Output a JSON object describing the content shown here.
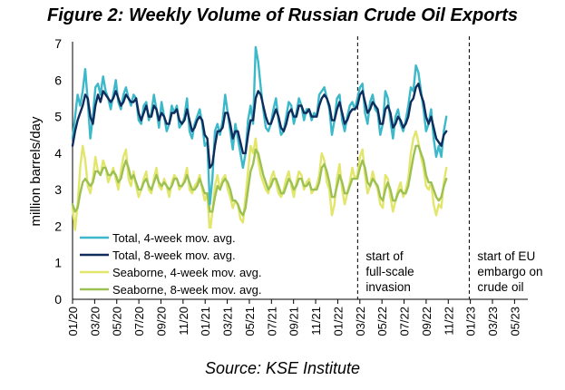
{
  "chart_data": {
    "type": "line",
    "title": "Figure 2: Weekly Volume of Russian Crude Oil Exports",
    "source": "Source: KSE Institute",
    "ylabel": "million barrels/day",
    "xlabel": "",
    "ylim": [
      0,
      7
    ],
    "yticks": [
      "0",
      "1",
      "2",
      "3",
      "4",
      "5",
      "6",
      "7"
    ],
    "xticks": [
      "01/20",
      "03/20",
      "05/20",
      "07/20",
      "09/20",
      "11/20",
      "01/21",
      "03/21",
      "05/21",
      "07/21",
      "09/21",
      "11/21",
      "01/22",
      "03/22",
      "05/22",
      "07/22",
      "09/22",
      "11/22",
      "01/23",
      "03/23",
      "05/23"
    ],
    "x_start": "2020-01",
    "weeks_per_month": 4.345,
    "series": [
      {
        "name": "Total, 4-week mov. avg.",
        "color": "#3BB8C9",
        "values": [
          4.4,
          5.0,
          5.6,
          5.3,
          5.7,
          6.3,
          5.4,
          4.4,
          5.0,
          5.8,
          5.9,
          5.6,
          6.1,
          5.7,
          5.5,
          5.2,
          5.6,
          6.0,
          5.4,
          5.2,
          5.6,
          5.8,
          5.5,
          5.3,
          5.6,
          5.5,
          4.9,
          4.8,
          5.3,
          5.4,
          4.9,
          5.1,
          5.6,
          5.2,
          4.7,
          5.4,
          5.0,
          4.6,
          4.8,
          5.3,
          5.1,
          5.3,
          4.7,
          4.8,
          5.0,
          5.5,
          4.6,
          4.4,
          4.8,
          5.0,
          5.2,
          4.8,
          4.2,
          4.3,
          2.6,
          3.3,
          4.6,
          4.8,
          4.5,
          4.9,
          5.6,
          5.1,
          4.6,
          4.1,
          4.8,
          4.4,
          4.0,
          3.6,
          4.0,
          4.9,
          5.3,
          4.8,
          6.9,
          6.5,
          5.8,
          5.2,
          4.7,
          4.6,
          4.8,
          5.2,
          5.5,
          4.9,
          4.5,
          4.6,
          5.0,
          5.4,
          5.3,
          4.8,
          5.1,
          5.5,
          5.3,
          4.9,
          5.2,
          5.2,
          4.9,
          5.1,
          5.0,
          5.6,
          5.7,
          5.8,
          5.5,
          5.2,
          4.5,
          4.9,
          5.5,
          5.6,
          4.9,
          4.6,
          5.0,
          5.3,
          5.4,
          5.2,
          5.5,
          5.8,
          5.9,
          5.1,
          4.8,
          5.4,
          5.6,
          5.2,
          5.1,
          4.5,
          4.8,
          5.7,
          5.5,
          4.9,
          4.4,
          5.0,
          5.2,
          4.8,
          4.6,
          4.9,
          5.3,
          5.8,
          5.7,
          6.4,
          6.2,
          5.7,
          5.2,
          4.6,
          4.8,
          5.2,
          4.4,
          3.9,
          4.2,
          3.9,
          4.6,
          5.0
        ]
      },
      {
        "name": "Total, 8-week mov. avg.",
        "color": "#0E2C5C",
        "values": [
          4.2,
          4.6,
          4.9,
          5.1,
          5.3,
          5.6,
          5.5,
          5.0,
          4.8,
          5.3,
          5.6,
          5.4,
          5.7,
          5.6,
          5.5,
          5.4,
          5.5,
          5.7,
          5.5,
          5.3,
          5.4,
          5.6,
          5.5,
          5.4,
          5.4,
          5.5,
          5.1,
          4.9,
          5.1,
          5.3,
          5.0,
          5.0,
          5.3,
          5.2,
          4.9,
          5.1,
          5.0,
          4.8,
          4.8,
          5.1,
          5.1,
          5.2,
          4.9,
          4.8,
          4.9,
          5.2,
          4.9,
          4.6,
          4.7,
          4.9,
          5.0,
          4.9,
          4.5,
          4.4,
          3.6,
          3.7,
          4.2,
          4.6,
          4.6,
          4.7,
          5.1,
          5.1,
          4.8,
          4.4,
          4.6,
          4.6,
          4.3,
          4.0,
          4.0,
          4.5,
          4.9,
          4.9,
          5.5,
          5.7,
          5.6,
          5.3,
          5.0,
          4.8,
          4.8,
          5.0,
          5.2,
          5.0,
          4.7,
          4.6,
          4.8,
          5.1,
          5.2,
          5.0,
          5.0,
          5.3,
          5.3,
          5.1,
          5.1,
          5.2,
          5.0,
          5.0,
          5.0,
          5.3,
          5.5,
          5.6,
          5.5,
          5.3,
          4.9,
          4.9,
          5.2,
          5.4,
          5.1,
          4.8,
          4.9,
          5.1,
          5.2,
          5.2,
          5.3,
          5.6,
          5.7,
          5.4,
          5.1,
          5.2,
          5.4,
          5.3,
          5.2,
          4.8,
          4.8,
          5.2,
          5.3,
          5.1,
          4.7,
          4.8,
          5.0,
          4.9,
          4.7,
          4.8,
          5.0,
          5.4,
          5.5,
          5.8,
          5.9,
          5.6,
          5.4,
          5.0,
          4.8,
          5.0,
          4.7,
          4.4,
          4.3,
          4.2,
          4.5,
          4.6
        ]
      },
      {
        "name": "Seaborne, 4-week mov. avg.",
        "color": "#E2E66A",
        "values": [
          2.5,
          1.9,
          2.6,
          3.6,
          4.2,
          3.8,
          3.1,
          2.9,
          3.3,
          3.9,
          3.5,
          3.4,
          3.8,
          3.6,
          3.2,
          3.4,
          3.6,
          3.3,
          3.0,
          3.5,
          3.9,
          4.1,
          3.3,
          3.1,
          3.5,
          3.1,
          2.8,
          3.0,
          3.3,
          3.5,
          3.0,
          2.9,
          3.3,
          3.6,
          3.1,
          3.0,
          3.3,
          3.1,
          2.8,
          3.2,
          3.4,
          3.3,
          3.0,
          3.1,
          3.3,
          3.6,
          3.0,
          2.9,
          3.1,
          3.2,
          3.4,
          3.0,
          2.7,
          2.9,
          1.8,
          2.4,
          3.1,
          3.4,
          3.0,
          3.3,
          3.4,
          3.0,
          2.8,
          2.5,
          2.7,
          2.6,
          2.2,
          2.1,
          2.8,
          3.5,
          4.2,
          4.0,
          4.4,
          3.8,
          3.4,
          3.2,
          3.0,
          2.9,
          3.3,
          3.5,
          3.2,
          2.9,
          2.8,
          3.0,
          3.3,
          3.5,
          3.1,
          2.8,
          3.2,
          3.5,
          3.4,
          3.0,
          3.2,
          3.3,
          2.9,
          3.0,
          3.1,
          3.4,
          4.0,
          3.8,
          3.2,
          3.0,
          2.3,
          2.6,
          3.3,
          3.7,
          3.0,
          2.6,
          2.9,
          3.2,
          3.6,
          3.3,
          3.4,
          3.9,
          4.1,
          3.4,
          2.9,
          3.1,
          3.5,
          3.2,
          3.0,
          2.6,
          2.5,
          3.4,
          3.3,
          2.8,
          2.4,
          2.7,
          3.0,
          3.2,
          2.8,
          3.0,
          3.3,
          4.0,
          4.4,
          4.6,
          4.3,
          3.9,
          3.6,
          3.1,
          3.0,
          3.2,
          2.6,
          2.3,
          2.6,
          2.5,
          3.2,
          3.6
        ]
      },
      {
        "name": "Seaborne, 8-week mov. avg.",
        "color": "#9CC152",
        "values": [
          2.6,
          2.4,
          2.5,
          2.9,
          3.2,
          3.3,
          3.2,
          3.1,
          3.2,
          3.5,
          3.5,
          3.4,
          3.6,
          3.6,
          3.4,
          3.4,
          3.5,
          3.4,
          3.2,
          3.3,
          3.6,
          3.8,
          3.6,
          3.3,
          3.4,
          3.2,
          3.0,
          3.0,
          3.2,
          3.3,
          3.1,
          3.0,
          3.2,
          3.4,
          3.2,
          3.1,
          3.2,
          3.1,
          3.0,
          3.1,
          3.3,
          3.3,
          3.1,
          3.1,
          3.2,
          3.4,
          3.2,
          3.0,
          3.0,
          3.1,
          3.3,
          3.1,
          2.9,
          2.9,
          2.4,
          2.4,
          2.8,
          3.1,
          3.0,
          3.2,
          3.3,
          3.2,
          3.0,
          2.7,
          2.7,
          2.6,
          2.4,
          2.3,
          2.5,
          3.0,
          3.5,
          3.7,
          4.1,
          4.0,
          3.7,
          3.4,
          3.2,
          3.0,
          3.1,
          3.3,
          3.3,
          3.1,
          2.9,
          2.9,
          3.1,
          3.3,
          3.2,
          3.0,
          3.1,
          3.3,
          3.3,
          3.1,
          3.1,
          3.2,
          3.0,
          3.0,
          3.0,
          3.2,
          3.6,
          3.7,
          3.5,
          3.2,
          2.8,
          2.8,
          3.1,
          3.4,
          3.2,
          2.9,
          2.9,
          3.1,
          3.3,
          3.3,
          3.3,
          3.6,
          3.8,
          3.6,
          3.2,
          3.1,
          3.3,
          3.2,
          3.1,
          2.8,
          2.7,
          3.0,
          3.2,
          3.0,
          2.7,
          2.7,
          2.9,
          3.0,
          2.9,
          2.9,
          3.1,
          3.5,
          3.9,
          4.2,
          4.2,
          4.0,
          3.8,
          3.4,
          3.2,
          3.2,
          3.0,
          2.8,
          2.7,
          2.8,
          3.1,
          3.3
        ]
      }
    ],
    "events": [
      {
        "date": "2022-02.8",
        "month_index": 25.8,
        "label_lines": [
          "start of",
          "full-scale",
          "invasion"
        ]
      },
      {
        "date": "2022-12.9",
        "month_index": 35.9,
        "label_lines": [
          "start of EU",
          "embargo on",
          "crude oil"
        ]
      }
    ],
    "legend_position": "lower-left",
    "grid": false
  }
}
